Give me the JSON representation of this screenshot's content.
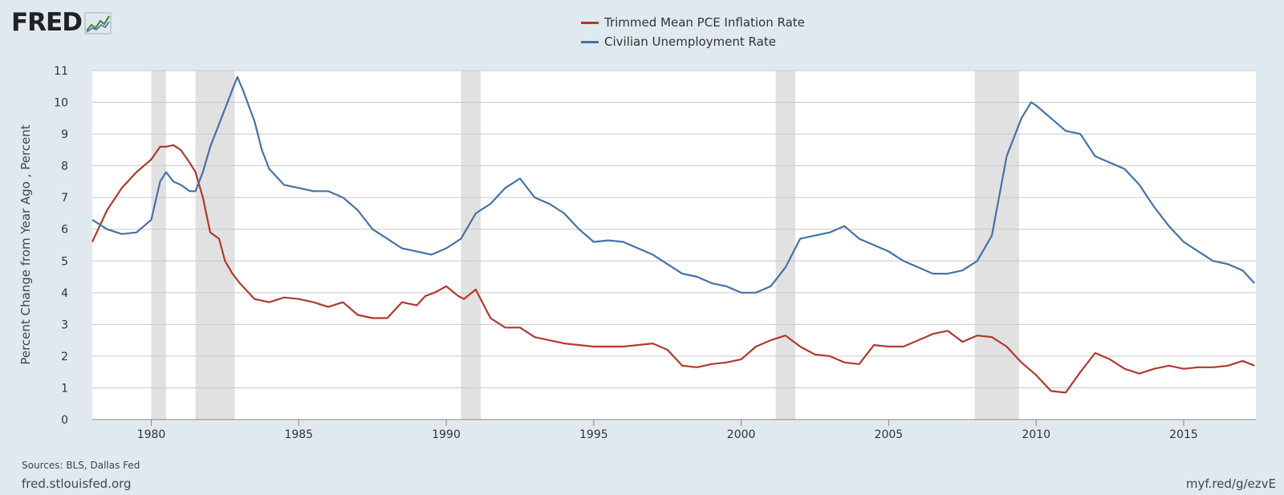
{
  "brand": {
    "name": "FRED"
  },
  "legend": [
    {
      "label": "Trimmed Mean PCE Inflation Rate",
      "color": "#b03a2e"
    },
    {
      "label": "Civilian Unemployment Rate",
      "color": "#4572a7"
    }
  ],
  "footer": {
    "sources": "Sources: BLS, Dallas Fed",
    "site": "fred.stlouisfed.org",
    "shortlink": "myf.red/g/ezvE"
  },
  "colors": {
    "background": "#e1e9f0",
    "plot": "#ffffff",
    "grid": "#c8c8c8",
    "recession": "#e1e1e1"
  },
  "chart_data": {
    "type": "line",
    "title": "",
    "xlabel": "",
    "ylabel": "Percent Change from Year Ago , Percent",
    "xlim": [
      1978.0,
      2017.45
    ],
    "ylim": [
      0,
      11
    ],
    "yticks": [
      0,
      1,
      2,
      3,
      4,
      5,
      6,
      7,
      8,
      9,
      10,
      11
    ],
    "xticks": [
      1980,
      1985,
      1990,
      1995,
      2000,
      2005,
      2010,
      2015
    ],
    "recessions": [
      [
        1980.0,
        1980.5
      ],
      [
        1981.5,
        1982.83
      ],
      [
        1990.5,
        1991.17
      ],
      [
        2001.17,
        2001.83
      ],
      [
        2007.92,
        2009.42
      ]
    ],
    "series": [
      {
        "name": "Trimmed Mean PCE Inflation Rate",
        "color": "#b03a2e",
        "x": [
          1978.0,
          1978.5,
          1979.0,
          1979.5,
          1980.0,
          1980.3,
          1980.5,
          1980.75,
          1981.0,
          1981.3,
          1981.5,
          1981.75,
          1982.0,
          1982.3,
          1982.5,
          1982.75,
          1983.0,
          1983.5,
          1984.0,
          1984.5,
          1985.0,
          1985.5,
          1986.0,
          1986.5,
          1987.0,
          1987.5,
          1988.0,
          1988.5,
          1989.0,
          1989.3,
          1989.6,
          1990.0,
          1990.4,
          1990.6,
          1991.0,
          1991.5,
          1992.0,
          1992.5,
          1993.0,
          1994.0,
          1995.0,
          1996.0,
          1997.0,
          1997.5,
          1998.0,
          1998.5,
          1999.0,
          1999.5,
          2000.0,
          2000.5,
          2001.0,
          2001.5,
          2002.0,
          2002.5,
          2003.0,
          2003.5,
          2004.0,
          2004.5,
          2005.0,
          2005.5,
          2006.0,
          2006.5,
          2007.0,
          2007.5,
          2008.0,
          2008.5,
          2009.0,
          2009.5,
          2010.0,
          2010.5,
          2011.0,
          2011.5,
          2012.0,
          2012.5,
          2013.0,
          2013.5,
          2014.0,
          2014.5,
          2015.0,
          2015.5,
          2016.0,
          2016.5,
          2017.0,
          2017.4
        ],
        "values": [
          5.6,
          6.6,
          7.3,
          7.8,
          8.2,
          8.6,
          8.6,
          8.65,
          8.5,
          8.1,
          7.8,
          7.0,
          5.9,
          5.7,
          5.0,
          4.6,
          4.3,
          3.8,
          3.7,
          3.85,
          3.8,
          3.7,
          3.55,
          3.7,
          3.3,
          3.2,
          3.2,
          3.7,
          3.6,
          3.9,
          4.0,
          4.2,
          3.9,
          3.8,
          4.1,
          3.2,
          2.9,
          2.9,
          2.6,
          2.4,
          2.3,
          2.3,
          2.4,
          2.2,
          1.7,
          1.65,
          1.75,
          1.8,
          1.9,
          2.3,
          2.5,
          2.65,
          2.3,
          2.05,
          2.0,
          1.8,
          1.75,
          2.35,
          2.3,
          2.3,
          2.5,
          2.7,
          2.8,
          2.45,
          2.65,
          2.6,
          2.3,
          1.8,
          1.4,
          0.9,
          0.85,
          1.5,
          2.1,
          1.9,
          1.6,
          1.45,
          1.6,
          1.7,
          1.6,
          1.65,
          1.65,
          1.7,
          1.85,
          1.7
        ]
      },
      {
        "name": "Civilian Unemployment Rate",
        "color": "#4572a7",
        "x": [
          1978.0,
          1978.5,
          1979.0,
          1979.5,
          1980.0,
          1980.3,
          1980.5,
          1980.75,
          1981.0,
          1981.3,
          1981.5,
          1981.75,
          1982.0,
          1982.5,
          1982.75,
          1982.92,
          1983.1,
          1983.5,
          1983.75,
          1984.0,
          1984.5,
          1985.0,
          1985.5,
          1986.0,
          1986.5,
          1987.0,
          1987.5,
          1988.0,
          1988.5,
          1989.0,
          1989.5,
          1990.0,
          1990.5,
          1991.0,
          1991.5,
          1992.0,
          1992.5,
          1993.0,
          1993.5,
          1994.0,
          1994.5,
          1995.0,
          1995.5,
          1996.0,
          1996.5,
          1997.0,
          1997.5,
          1998.0,
          1998.5,
          1999.0,
          1999.5,
          2000.0,
          2000.5,
          2001.0,
          2001.5,
          2002.0,
          2002.5,
          2003.0,
          2003.5,
          2004.0,
          2004.5,
          2005.0,
          2005.5,
          2006.0,
          2006.5,
          2007.0,
          2007.5,
          2008.0,
          2008.5,
          2009.0,
          2009.5,
          2009.83,
          2010.0,
          2010.5,
          2011.0,
          2011.5,
          2012.0,
          2012.5,
          2013.0,
          2013.5,
          2014.0,
          2014.5,
          2015.0,
          2015.5,
          2016.0,
          2016.5,
          2017.0,
          2017.4
        ],
        "values": [
          6.3,
          6.0,
          5.85,
          5.9,
          6.3,
          7.5,
          7.8,
          7.5,
          7.4,
          7.2,
          7.2,
          7.8,
          8.6,
          9.8,
          10.4,
          10.8,
          10.4,
          9.4,
          8.5,
          7.9,
          7.4,
          7.3,
          7.2,
          7.2,
          7.0,
          6.6,
          6.0,
          5.7,
          5.4,
          5.3,
          5.2,
          5.4,
          5.7,
          6.5,
          6.8,
          7.3,
          7.6,
          7.0,
          6.8,
          6.5,
          6.0,
          5.6,
          5.65,
          5.6,
          5.4,
          5.2,
          4.9,
          4.6,
          4.5,
          4.3,
          4.2,
          4.0,
          4.0,
          4.2,
          4.8,
          5.7,
          5.8,
          5.9,
          6.1,
          5.7,
          5.5,
          5.3,
          5.0,
          4.8,
          4.6,
          4.6,
          4.7,
          5.0,
          5.8,
          8.3,
          9.5,
          10.0,
          9.9,
          9.5,
          9.1,
          9.0,
          8.3,
          8.1,
          7.9,
          7.4,
          6.7,
          6.1,
          5.6,
          5.3,
          5.0,
          4.9,
          4.7,
          4.3
        ]
      }
    ]
  }
}
